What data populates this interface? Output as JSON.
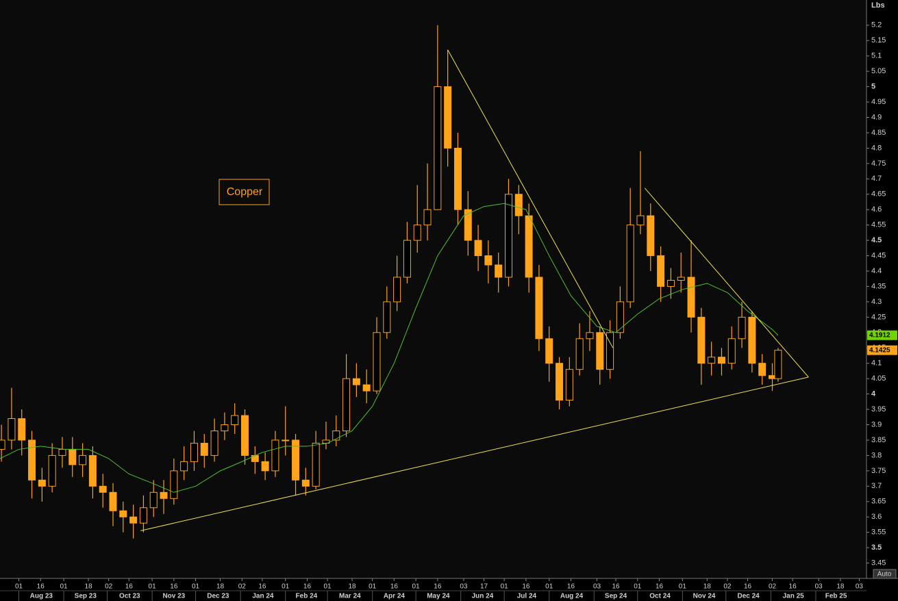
{
  "chart_data": {
    "type": "candlestick",
    "title": "Copper",
    "y_label": "Lbs",
    "button": "Auto",
    "color": "#ffa31a",
    "x": [
      "2023-07-20",
      "2023-07-27",
      "2023-08-03",
      "2023-08-10",
      "2023-08-17",
      "2023-08-24",
      "2023-08-31",
      "2023-09-07",
      "2023-09-14",
      "2023-09-21",
      "2023-09-28",
      "2023-10-05",
      "2023-10-12",
      "2023-10-19",
      "2023-10-26",
      "2023-11-02",
      "2023-11-09",
      "2023-11-16",
      "2023-11-23",
      "2023-11-30",
      "2023-12-07",
      "2023-12-14",
      "2023-12-21",
      "2023-12-28",
      "2024-01-04",
      "2024-01-11",
      "2024-01-18",
      "2024-01-25",
      "2024-02-01",
      "2024-02-08",
      "2024-02-15",
      "2024-02-22",
      "2024-02-29",
      "2024-03-07",
      "2024-03-14",
      "2024-03-21",
      "2024-03-28",
      "2024-04-04",
      "2024-04-11",
      "2024-04-18",
      "2024-04-25",
      "2024-05-02",
      "2024-05-09",
      "2024-05-16",
      "2024-05-23",
      "2024-05-30",
      "2024-06-06",
      "2024-06-13",
      "2024-06-20",
      "2024-06-27",
      "2024-07-04",
      "2024-07-11",
      "2024-07-18",
      "2024-07-25",
      "2024-08-01",
      "2024-08-08",
      "2024-08-15",
      "2024-08-22",
      "2024-08-29",
      "2024-09-05",
      "2024-09-12",
      "2024-09-19",
      "2024-09-26",
      "2024-10-03",
      "2024-10-10",
      "2024-10-17",
      "2024-10-24",
      "2024-10-31",
      "2024-11-07",
      "2024-11-14",
      "2024-11-21",
      "2024-11-28",
      "2024-12-05",
      "2024-12-12",
      "2024-12-19",
      "2024-12-26",
      "2025-01-02",
      "2025-01-06"
    ],
    "open": [
      3.82,
      3.85,
      3.92,
      3.85,
      3.72,
      3.7,
      3.8,
      3.82,
      3.77,
      3.8,
      3.7,
      3.68,
      3.62,
      3.6,
      3.58,
      3.63,
      3.68,
      3.66,
      3.75,
      3.78,
      3.84,
      3.8,
      3.88,
      3.9,
      3.93,
      3.8,
      3.78,
      3.75,
      3.85,
      3.85,
      3.72,
      3.7,
      3.84,
      3.85,
      3.88,
      4.05,
      4.03,
      4.01,
      4.2,
      4.3,
      4.38,
      4.5,
      4.55,
      4.6,
      5.0,
      4.8,
      4.6,
      4.5,
      4.45,
      4.42,
      4.38,
      4.65,
      4.58,
      4.38,
      4.18,
      4.1,
      3.98,
      4.08,
      4.18,
      4.2,
      4.08,
      4.2,
      4.3,
      4.55,
      4.58,
      4.45,
      4.35,
      4.37,
      4.38,
      4.25,
      4.1,
      4.12,
      4.1,
      4.18,
      4.25,
      4.1,
      4.06,
      4.05
    ],
    "high": [
      3.9,
      4.02,
      3.95,
      3.88,
      3.76,
      3.84,
      3.86,
      3.86,
      3.84,
      3.83,
      3.74,
      3.71,
      3.65,
      3.64,
      3.67,
      3.72,
      3.72,
      3.79,
      3.83,
      3.88,
      3.87,
      3.92,
      3.94,
      3.97,
      3.95,
      3.83,
      3.81,
      3.88,
      3.96,
      3.87,
      3.76,
      3.88,
      3.91,
      3.93,
      4.13,
      4.1,
      4.08,
      4.25,
      4.35,
      4.45,
      4.56,
      4.68,
      4.75,
      5.2,
      5.12,
      4.85,
      4.66,
      4.55,
      4.5,
      4.46,
      4.7,
      4.68,
      4.62,
      4.42,
      4.22,
      4.12,
      4.12,
      4.23,
      4.27,
      4.22,
      4.24,
      4.35,
      4.67,
      4.79,
      4.62,
      4.48,
      4.41,
      4.46,
      4.5,
      4.28,
      4.17,
      4.15,
      4.22,
      4.3,
      4.27,
      4.13,
      4.1,
      4.15
    ],
    "low": [
      3.78,
      3.82,
      3.8,
      3.66,
      3.65,
      3.68,
      3.76,
      3.73,
      3.73,
      3.66,
      3.63,
      3.57,
      3.55,
      3.53,
      3.55,
      3.6,
      3.61,
      3.64,
      3.72,
      3.75,
      3.76,
      3.78,
      3.85,
      3.87,
      3.77,
      3.74,
      3.72,
      3.73,
      3.8,
      3.67,
      3.67,
      3.69,
      3.82,
      3.83,
      3.86,
      3.99,
      3.97,
      4.0,
      4.18,
      4.27,
      4.36,
      4.46,
      4.5,
      4.6,
      4.74,
      4.55,
      4.45,
      4.4,
      4.36,
      4.33,
      4.35,
      4.52,
      4.33,
      4.14,
      4.04,
      3.95,
      3.96,
      4.06,
      4.14,
      4.03,
      4.05,
      4.18,
      4.28,
      4.52,
      4.4,
      4.3,
      4.31,
      4.33,
      4.2,
      4.03,
      4.06,
      4.06,
      4.08,
      4.15,
      4.07,
      4.03,
      4.01,
      4.04
    ],
    "close": [
      3.85,
      3.92,
      3.85,
      3.72,
      3.7,
      3.8,
      3.82,
      3.77,
      3.8,
      3.7,
      3.68,
      3.62,
      3.6,
      3.58,
      3.63,
      3.68,
      3.66,
      3.75,
      3.78,
      3.84,
      3.8,
      3.88,
      3.9,
      3.93,
      3.8,
      3.78,
      3.75,
      3.85,
      3.85,
      3.72,
      3.7,
      3.84,
      3.85,
      3.88,
      4.05,
      4.03,
      4.01,
      4.2,
      4.3,
      4.38,
      4.5,
      4.55,
      4.6,
      5.0,
      4.8,
      4.6,
      4.5,
      4.45,
      4.42,
      4.38,
      4.65,
      4.58,
      4.38,
      4.18,
      4.1,
      3.98,
      4.08,
      4.18,
      4.2,
      4.08,
      4.2,
      4.3,
      4.55,
      4.58,
      4.45,
      4.35,
      4.37,
      4.38,
      4.25,
      4.1,
      4.12,
      4.1,
      4.18,
      4.25,
      4.1,
      4.06,
      4.05,
      4.1425
    ],
    "moving_average": {
      "color": "#4fc22a",
      "tag_color": "#6fd400",
      "x": [
        "2023-07-19",
        "2023-08-01",
        "2023-08-16",
        "2023-09-01",
        "2023-09-18",
        "2023-10-02",
        "2023-10-16",
        "2023-11-01",
        "2023-11-16",
        "2023-12-01",
        "2023-12-18",
        "2024-01-02",
        "2024-01-16",
        "2024-02-01",
        "2024-02-16",
        "2024-03-01",
        "2024-03-18",
        "2024-04-01",
        "2024-04-16",
        "2024-05-01",
        "2024-05-16",
        "2024-06-03",
        "2024-06-17",
        "2024-07-01",
        "2024-07-16",
        "2024-08-01",
        "2024-08-16",
        "2024-09-03",
        "2024-09-16",
        "2024-10-01",
        "2024-10-16",
        "2024-11-01",
        "2024-11-18",
        "2024-12-02",
        "2024-12-16",
        "2025-01-02",
        "2025-01-06"
      ],
      "values": [
        3.79,
        3.82,
        3.83,
        3.82,
        3.82,
        3.79,
        3.74,
        3.71,
        3.68,
        3.7,
        3.75,
        3.78,
        3.81,
        3.83,
        3.83,
        3.84,
        3.88,
        3.96,
        4.1,
        4.28,
        4.45,
        4.58,
        4.61,
        4.62,
        4.6,
        4.45,
        4.32,
        4.22,
        4.2,
        4.26,
        4.31,
        4.34,
        4.36,
        4.33,
        4.27,
        4.21,
        4.1912
      ]
    },
    "trendlines": [
      {
        "color": "#f2e34a",
        "x": [
          "2023-10-24",
          "2025-01-27"
        ],
        "values": [
          3.555,
          4.055
        ]
      },
      {
        "color": "#f2e34a",
        "x": [
          "2024-05-23",
          "2024-09-14"
        ],
        "values": [
          5.12,
          4.15
        ]
      },
      {
        "color": "#f2e34a",
        "x": [
          "2024-10-06",
          "2025-01-27"
        ],
        "values": [
          4.67,
          4.055
        ]
      }
    ],
    "xlim": [
      "2023-07-19",
      "2025-03-08"
    ],
    "ylim": [
      3.4,
      5.282
    ],
    "yticks": [
      3.45,
      3.5,
      3.55,
      3.6,
      3.65,
      3.7,
      3.75,
      3.8,
      3.85,
      3.9,
      3.95,
      4,
      4.05,
      4.1,
      4.15,
      4.2,
      4.25,
      4.3,
      4.35,
      4.4,
      4.45,
      4.5,
      4.55,
      4.6,
      4.65,
      4.7,
      4.75,
      4.8,
      4.85,
      4.9,
      4.95,
      5,
      5.05,
      5.1,
      5.15,
      5.2
    ],
    "xticks": [
      {
        "value": "2023-08-01",
        "label": "01"
      },
      {
        "value": "2023-08-16",
        "label": "16"
      },
      {
        "value": "2023-09-01",
        "label": "01"
      },
      {
        "value": "2023-09-18",
        "label": "18"
      },
      {
        "value": "2023-10-02",
        "label": "02"
      },
      {
        "value": "2023-10-16",
        "label": "16"
      },
      {
        "value": "2023-11-01",
        "label": "01"
      },
      {
        "value": "2023-11-16",
        "label": "16"
      },
      {
        "value": "2023-12-01",
        "label": "01"
      },
      {
        "value": "2023-12-18",
        "label": "18"
      },
      {
        "value": "2024-01-02",
        "label": "02"
      },
      {
        "value": "2024-01-16",
        "label": "16"
      },
      {
        "value": "2024-02-01",
        "label": "01"
      },
      {
        "value": "2024-02-16",
        "label": "16"
      },
      {
        "value": "2024-03-01",
        "label": "01"
      },
      {
        "value": "2024-03-18",
        "label": "18"
      },
      {
        "value": "2024-04-01",
        "label": "01"
      },
      {
        "value": "2024-04-16",
        "label": "16"
      },
      {
        "value": "2024-05-01",
        "label": "01"
      },
      {
        "value": "2024-05-16",
        "label": "16"
      },
      {
        "value": "2024-06-03",
        "label": "03"
      },
      {
        "value": "2024-06-17",
        "label": "17"
      },
      {
        "value": "2024-07-01",
        "label": "01"
      },
      {
        "value": "2024-07-16",
        "label": "16"
      },
      {
        "value": "2024-08-01",
        "label": "01"
      },
      {
        "value": "2024-08-16",
        "label": "16"
      },
      {
        "value": "2024-09-03",
        "label": "03"
      },
      {
        "value": "2024-09-16",
        "label": "16"
      },
      {
        "value": "2024-10-01",
        "label": "01"
      },
      {
        "value": "2024-10-16",
        "label": "16"
      },
      {
        "value": "2024-11-01",
        "label": "01"
      },
      {
        "value": "2024-11-18",
        "label": "18"
      },
      {
        "value": "2024-12-02",
        "label": "02"
      },
      {
        "value": "2024-12-16",
        "label": "16"
      },
      {
        "value": "2025-01-02",
        "label": "02"
      },
      {
        "value": "2025-01-16",
        "label": "16"
      },
      {
        "value": "2025-02-03",
        "label": "03"
      },
      {
        "value": "2025-02-18",
        "label": "18"
      },
      {
        "value": "2025-03-03",
        "label": "03"
      }
    ],
    "month_labels": [
      {
        "value": "2023-08",
        "label": "Aug 23"
      },
      {
        "value": "2023-09",
        "label": "Sep 23"
      },
      {
        "value": "2023-10",
        "label": "Oct 23"
      },
      {
        "value": "2023-11",
        "label": "Nov 23"
      },
      {
        "value": "2023-12",
        "label": "Dec 23"
      },
      {
        "value": "2024-01",
        "label": "Jan 24"
      },
      {
        "value": "2024-02",
        "label": "Feb 24"
      },
      {
        "value": "2024-03",
        "label": "Mar 24"
      },
      {
        "value": "2024-04",
        "label": "Apr 24"
      },
      {
        "value": "2024-05",
        "label": "May 24"
      },
      {
        "value": "2024-06",
        "label": "Jun 24"
      },
      {
        "value": "2024-07",
        "label": "Jul 24"
      },
      {
        "value": "2024-08",
        "label": "Aug 24"
      },
      {
        "value": "2024-09",
        "label": "Sep 24"
      },
      {
        "value": "2024-10",
        "label": "Oct 24"
      },
      {
        "value": "2024-11",
        "label": "Nov 24"
      },
      {
        "value": "2024-12",
        "label": "Dec 24"
      },
      {
        "value": "2025-01",
        "label": "Jan 25"
      },
      {
        "value": "2025-02",
        "label": "Feb 25"
      }
    ]
  }
}
